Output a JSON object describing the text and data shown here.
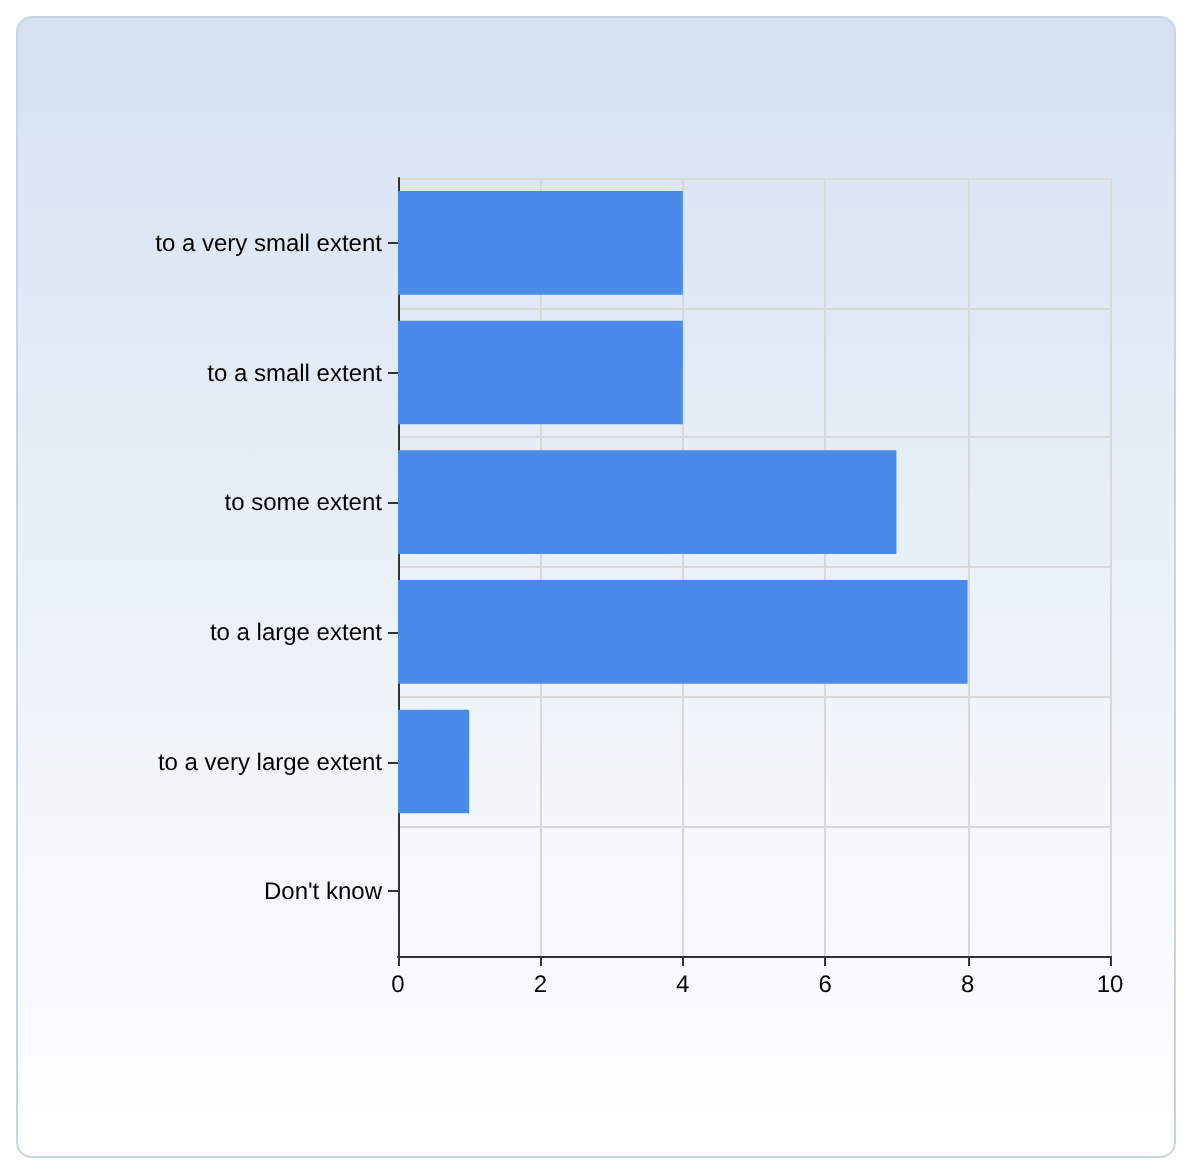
{
  "chart_data": {
    "type": "bar",
    "orientation": "horizontal",
    "categories": [
      "to a very small extent",
      "to a small extent",
      "to some extent",
      "to a large extent",
      "to a very large extent",
      "Don't know"
    ],
    "series": [
      {
        "color": "#4a8ae8",
        "values": [
          4,
          4,
          7,
          8,
          1,
          0
        ]
      }
    ],
    "xlim": [
      0,
      10
    ],
    "xticks": [
      0,
      2,
      4,
      6,
      8,
      10
    ],
    "grid": true
  }
}
